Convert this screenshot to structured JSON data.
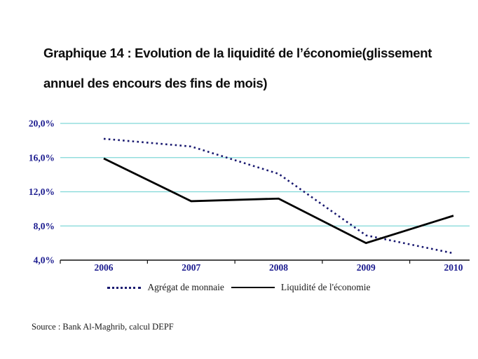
{
  "page": {
    "background": "#ffffff"
  },
  "title": {
    "lines": [
      "Graphique 14 : Evolution de la liquidité de l’économie(glissement",
      "annuel des encours des fins de mois)"
    ]
  },
  "source": "Source : Bank Al-Maghrib, calcul DEPF",
  "chart_data": {
    "type": "line",
    "title": "Evolution de la liquidité de l'économie (glissement annuel des encours des fins de mois)",
    "xlabel": "",
    "ylabel": "",
    "categories": [
      "2006",
      "2007",
      "2008",
      "2009",
      "2010"
    ],
    "series": [
      {
        "name": "Agrégat de monnaie",
        "style": "dotted",
        "color": "#191970",
        "values": [
          18.2,
          17.3,
          14.1,
          6.9,
          4.8
        ]
      },
      {
        "name": "Liquidité de l'économie",
        "style": "solid",
        "color": "#000000",
        "values": [
          15.9,
          10.9,
          11.2,
          6.0,
          9.2
        ]
      }
    ],
    "unit": "%",
    "ylim": [
      4,
      20
    ],
    "y_ticks": [
      {
        "value": 20,
        "label": "20,0%"
      },
      {
        "value": 16,
        "label": "16,0%"
      },
      {
        "value": 12,
        "label": "12,0%"
      },
      {
        "value": 8,
        "label": "8,0%"
      },
      {
        "value": 4,
        "label": "4,0%"
      }
    ],
    "grid": "horizontal",
    "grid_color": "#7fd8d8",
    "axis_color": "#111111",
    "axis_label_color": "#1b1b8f",
    "legend_position": "bottom"
  }
}
